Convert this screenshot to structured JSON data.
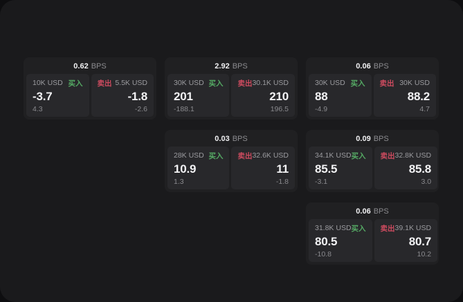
{
  "labels": {
    "buy": "买入",
    "sell": "卖出",
    "bps_unit": "BPS"
  },
  "colors": {
    "page_bg": "#0e0e10",
    "window_bg": "#1a1a1c",
    "card_bg": "#202022",
    "side_panel_bg": "#28282b",
    "buy_green": "#55aa64",
    "sell_red": "#cd4b5f",
    "value_white": "#f2f2f4",
    "muted_grey": "#8a8a8e"
  },
  "cards": [
    {
      "bps": "0.62",
      "col": 1,
      "row": 1,
      "buy": {
        "size": "10K USD",
        "value": "-3.7",
        "change": "4.3"
      },
      "sell": {
        "size": "5.5K USD",
        "value": "-1.8",
        "change": "-2.6"
      }
    },
    {
      "bps": "2.92",
      "col": 2,
      "row": 1,
      "buy": {
        "size": "30K USD",
        "value": "201",
        "change": "-188.1"
      },
      "sell": {
        "size": "30.1K USD",
        "value": "210",
        "change": "196.5"
      }
    },
    {
      "bps": "0.06",
      "col": 3,
      "row": 1,
      "buy": {
        "size": "30K USD",
        "value": "88",
        "change": "-4.9"
      },
      "sell": {
        "size": "30K USD",
        "value": "88.2",
        "change": "4.7"
      }
    },
    {
      "bps": "0.03",
      "col": 2,
      "row": 2,
      "buy": {
        "size": "28K USD",
        "value": "10.9",
        "change": "1.3"
      },
      "sell": {
        "size": "32.6K USD",
        "value": "11",
        "change": "-1.8"
      }
    },
    {
      "bps": "0.09",
      "col": 3,
      "row": 2,
      "buy": {
        "size": "34.1K USD",
        "value": "85.5",
        "change": "-3.1"
      },
      "sell": {
        "size": "32.8K USD",
        "value": "85.8",
        "change": "3.0"
      }
    },
    {
      "bps": "0.06",
      "col": 3,
      "row": 3,
      "buy": {
        "size": "31.8K USD",
        "value": "80.5",
        "change": "-10.8"
      },
      "sell": {
        "size": "39.1K USD",
        "value": "80.7",
        "change": "10.2"
      }
    }
  ]
}
